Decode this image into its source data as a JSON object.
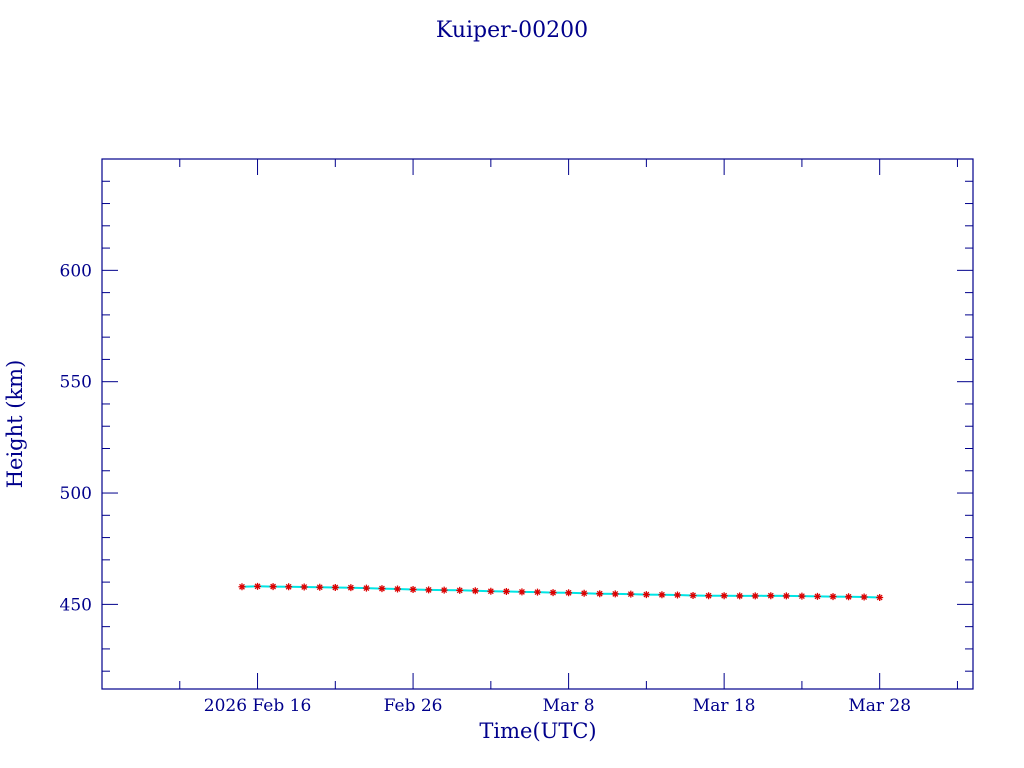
{
  "chart_data": {
    "type": "scatter",
    "title": "Kuiper-00200",
    "xlabel": "Time(UTC)",
    "ylabel": "Height (km)",
    "x_type": "date",
    "xlim": [
      "2026-02-06",
      "2026-04-03"
    ],
    "ylim": [
      412,
      650
    ],
    "x_ticks": [
      {
        "date": "2026-02-16",
        "label": "2026 Feb 16"
      },
      {
        "date": "2026-02-26",
        "label": "Feb 26"
      },
      {
        "date": "2026-03-08",
        "label": "Mar  8"
      },
      {
        "date": "2026-03-18",
        "label": "Mar 18"
      },
      {
        "date": "2026-03-28",
        "label": "Mar 28"
      }
    ],
    "y_ticks": [
      450,
      500,
      550,
      600
    ],
    "grid": false,
    "colors": {
      "axes": "#00008b",
      "marker": "#dd0000",
      "line": "#00e5e5"
    },
    "series": [
      {
        "marker": "star",
        "points": [
          [
            "2026-02-15",
            457.9
          ],
          [
            "2026-02-16",
            458.1
          ],
          [
            "2026-02-17",
            458.0
          ],
          [
            "2026-02-18",
            457.9
          ],
          [
            "2026-02-19",
            457.8
          ],
          [
            "2026-02-20",
            457.7
          ],
          [
            "2026-02-21",
            457.6
          ],
          [
            "2026-02-22",
            457.5
          ],
          [
            "2026-02-23",
            457.3
          ],
          [
            "2026-02-24",
            457.1
          ],
          [
            "2026-02-25",
            456.9
          ],
          [
            "2026-02-26",
            456.7
          ],
          [
            "2026-02-27",
            456.5
          ],
          [
            "2026-02-28",
            456.4
          ],
          [
            "2026-03-01",
            456.3
          ],
          [
            "2026-03-02",
            456.1
          ],
          [
            "2026-03-03",
            455.9
          ],
          [
            "2026-03-04",
            455.8
          ],
          [
            "2026-03-05",
            455.6
          ],
          [
            "2026-03-06",
            455.5
          ],
          [
            "2026-03-07",
            455.3
          ],
          [
            "2026-03-08",
            455.2
          ],
          [
            "2026-03-09",
            455.0
          ],
          [
            "2026-03-10",
            454.8
          ],
          [
            "2026-03-11",
            454.7
          ],
          [
            "2026-03-12",
            454.6
          ],
          [
            "2026-03-13",
            454.4
          ],
          [
            "2026-03-14",
            454.3
          ],
          [
            "2026-03-15",
            454.2
          ],
          [
            "2026-03-16",
            454.0
          ],
          [
            "2026-03-17",
            453.9
          ],
          [
            "2026-03-18",
            453.9
          ],
          [
            "2026-03-19",
            453.8
          ],
          [
            "2026-03-20",
            453.8
          ],
          [
            "2026-03-21",
            453.9
          ],
          [
            "2026-03-22",
            453.8
          ],
          [
            "2026-03-23",
            453.7
          ],
          [
            "2026-03-24",
            453.6
          ],
          [
            "2026-03-25",
            453.5
          ],
          [
            "2026-03-26",
            453.4
          ],
          [
            "2026-03-27",
            453.3
          ],
          [
            "2026-03-28",
            453.1
          ]
        ]
      }
    ]
  }
}
